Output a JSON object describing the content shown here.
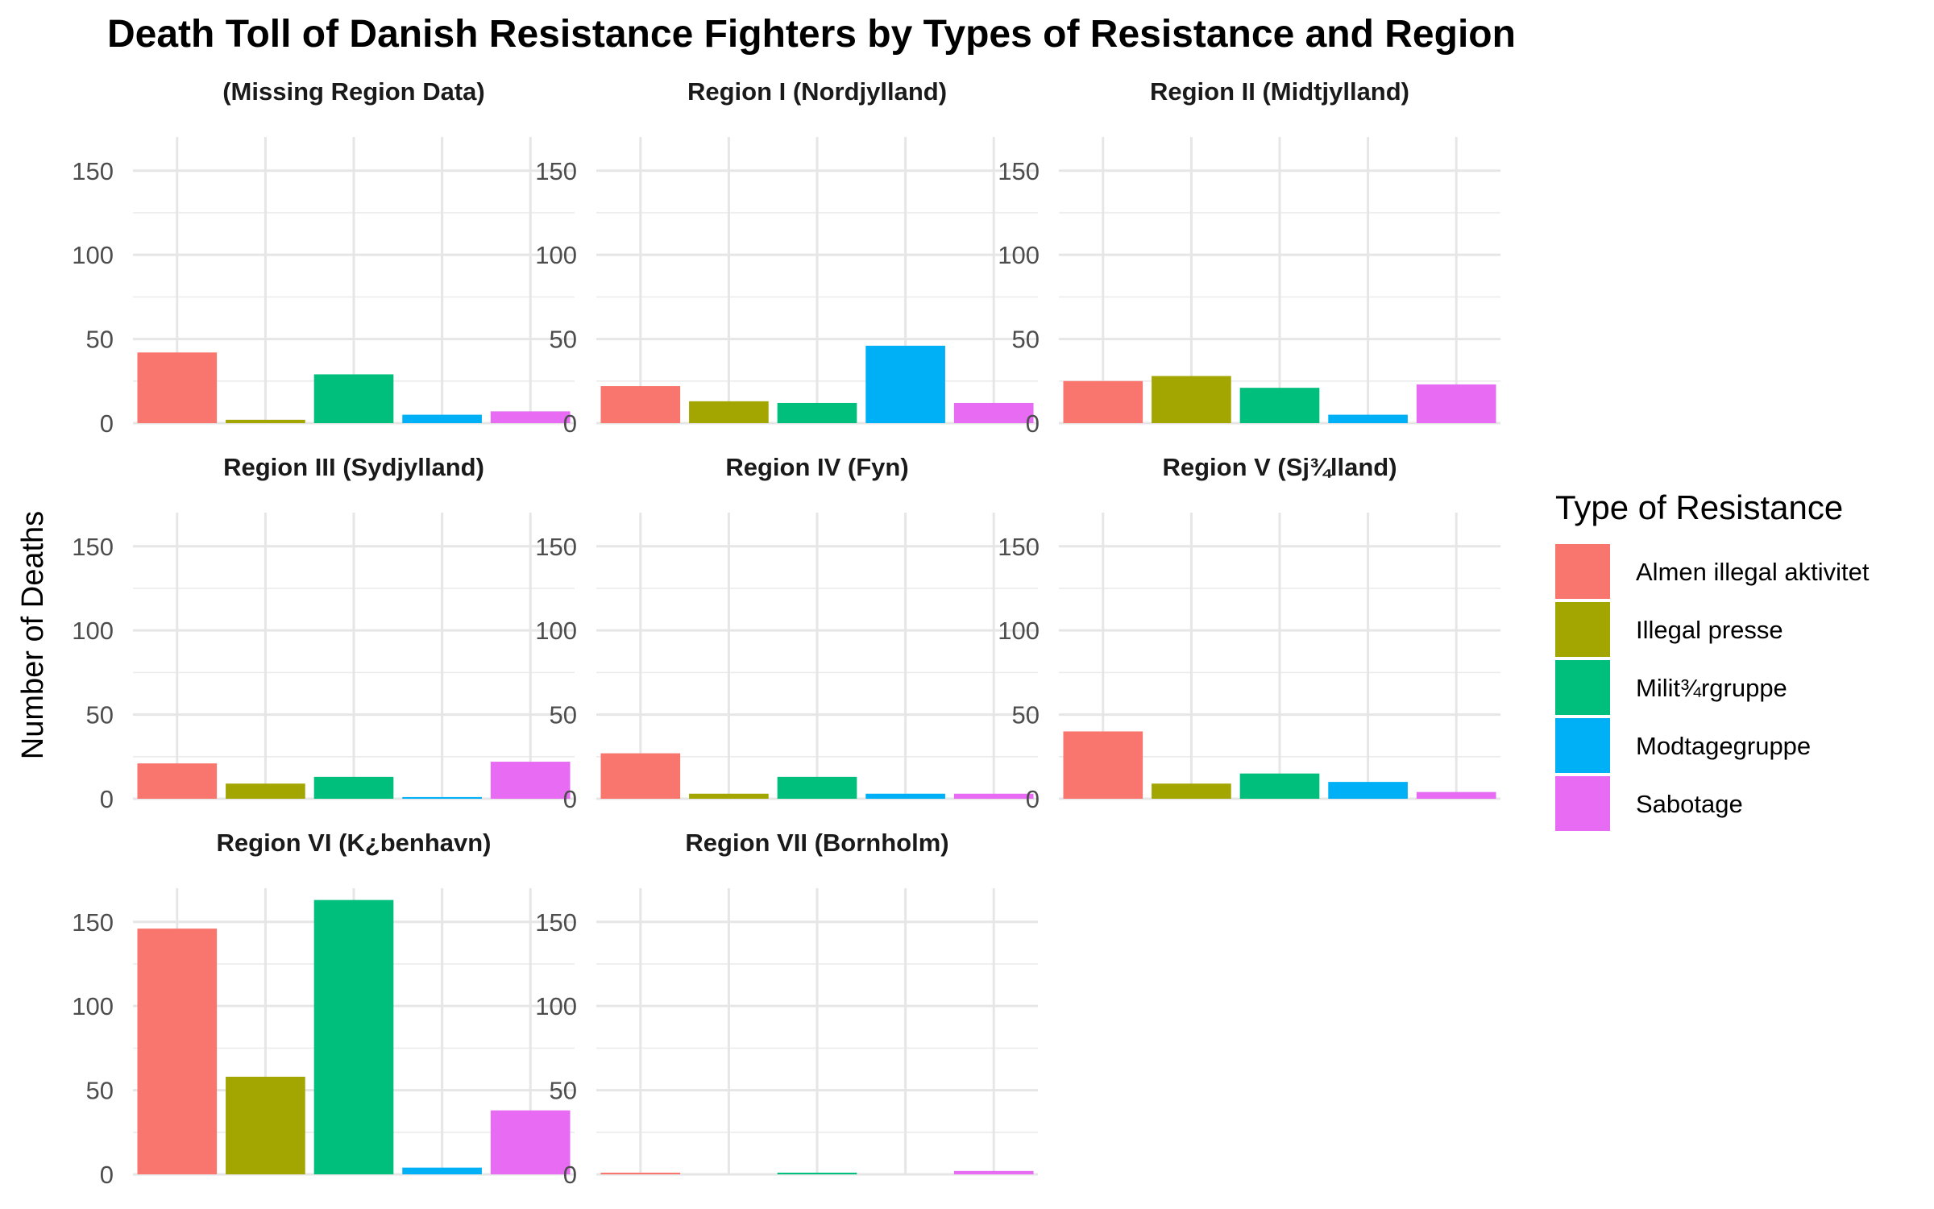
{
  "chart_data": {
    "type": "bar",
    "title": "Death Toll of Danish Resistance Fighters by Types of Resistance and Region",
    "xlabel": "",
    "ylabel": "Number of Deaths",
    "ylim": [
      0,
      170
    ],
    "y_ticks": [
      0,
      50,
      100,
      150
    ],
    "grid": true,
    "legend_title": "Type of Resistance",
    "legend_position": "right",
    "categories": [
      "Almen illegal aktivitet",
      "Illegal presse",
      "Milit¾rgruppe",
      "Modtagegruppe",
      "Sabotage"
    ],
    "colors": [
      "#F8766D",
      "#A3A500",
      "#00BF7D",
      "#00B0F6",
      "#E76BF3"
    ],
    "facets": [
      {
        "name": "(Missing Region Data)",
        "values": [
          42,
          2,
          29,
          5,
          7
        ]
      },
      {
        "name": "Region I (Nordjylland)",
        "values": [
          22,
          13,
          12,
          46,
          12
        ]
      },
      {
        "name": "Region II (Midtjylland)",
        "values": [
          25,
          28,
          21,
          5,
          23
        ]
      },
      {
        "name": "Region III (Sydjylland)",
        "values": [
          21,
          9,
          13,
          1,
          22
        ]
      },
      {
        "name": "Region IV (Fyn)",
        "values": [
          27,
          3,
          13,
          3,
          3
        ]
      },
      {
        "name": "Region V (Sj¾lland)",
        "values": [
          40,
          9,
          15,
          10,
          4
        ]
      },
      {
        "name": "Region VI (K¿benhavn)",
        "values": [
          146,
          58,
          163,
          4,
          38
        ]
      },
      {
        "name": "Region VII (Bornholm)",
        "values": [
          1,
          0,
          1,
          0,
          2
        ]
      }
    ]
  }
}
